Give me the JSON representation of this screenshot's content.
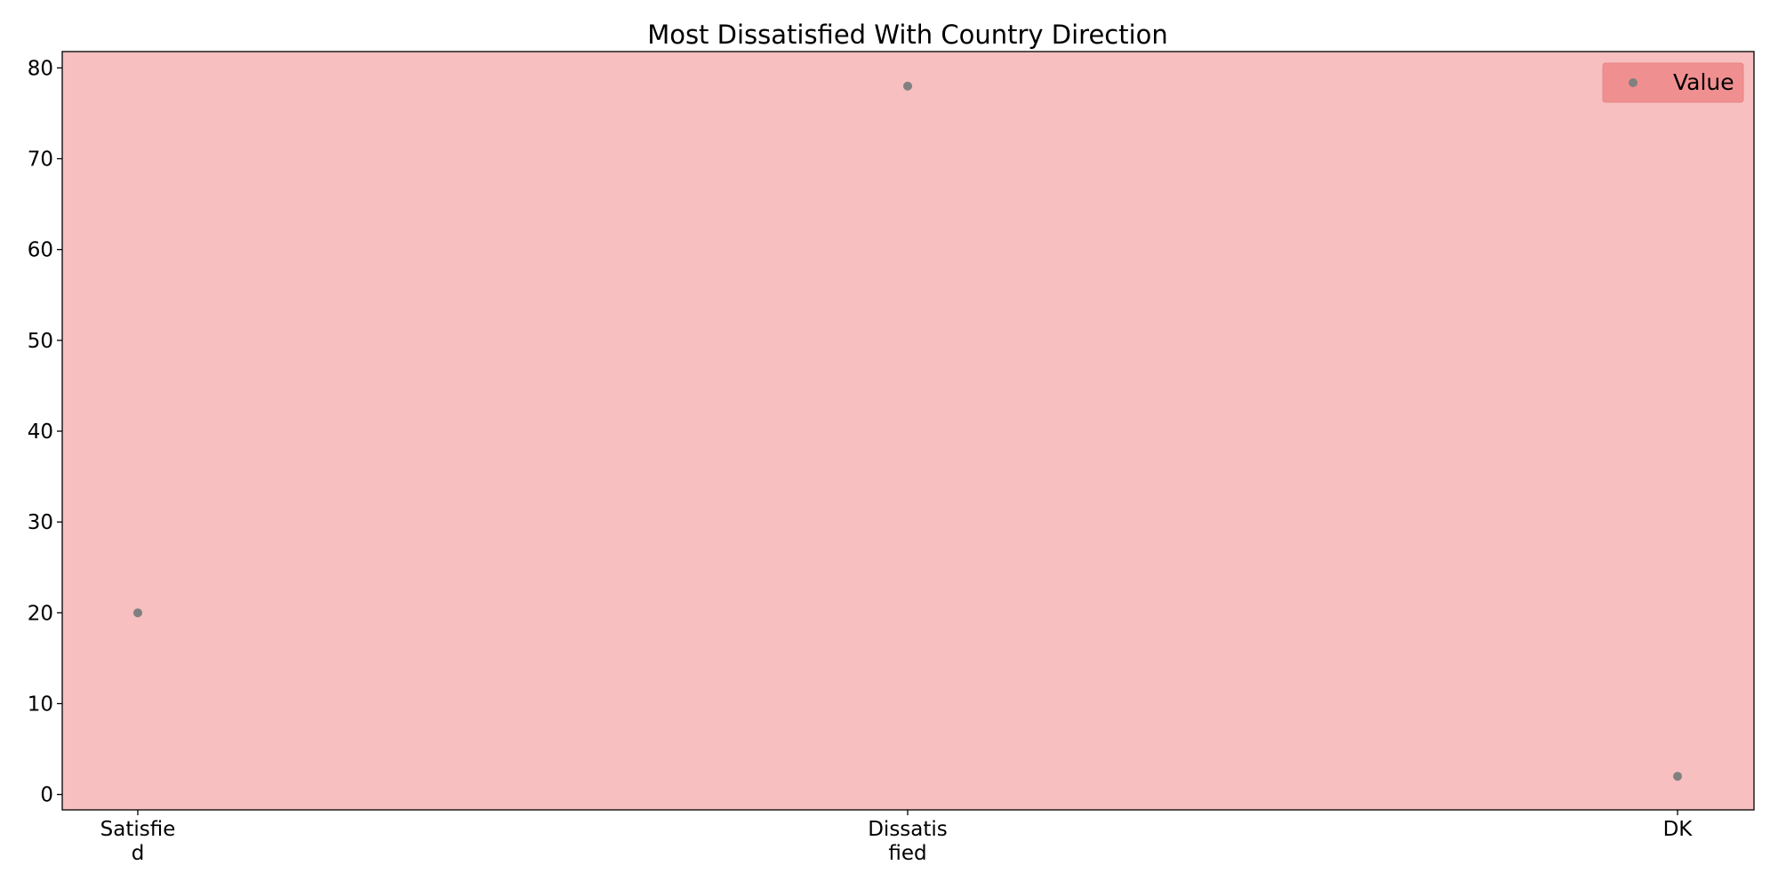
{
  "chart_data": {
    "type": "scatter",
    "title": "Most Dissatisfied With Country Direction",
    "xlabel": "",
    "ylabel": "",
    "categories": [
      [
        "Satisfie",
        "d"
      ],
      [
        "Dissatis",
        "fied"
      ],
      [
        "DK"
      ]
    ],
    "series": [
      {
        "name": "Value",
        "values": [
          20,
          78,
          2
        ]
      }
    ],
    "ylim": [
      -1.7,
      81.8
    ],
    "yticks": [
      0,
      10,
      20,
      30,
      40,
      50,
      60,
      70,
      80
    ],
    "grid": false,
    "legend_position": "top-right",
    "colors": {
      "plot_background": "#f7bfc0",
      "marker": "#808080",
      "legend_background": "#f08f90",
      "axis": "#000000"
    }
  }
}
